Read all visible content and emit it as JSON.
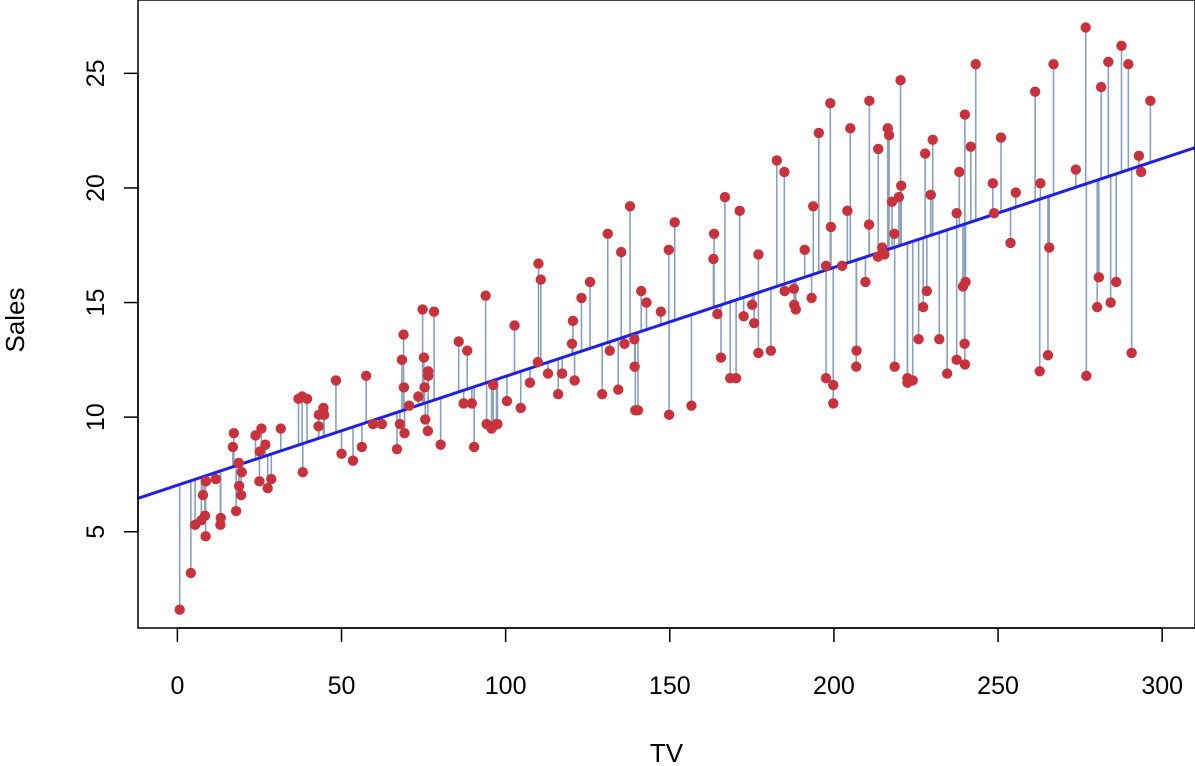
{
  "chart_data": {
    "type": "scatter",
    "title": "",
    "xlabel": "TV",
    "ylabel": "Sales",
    "xlim": [
      -12,
      310
    ],
    "ylim": [
      0.8,
      28.2
    ],
    "x_ticks": [
      0,
      50,
      100,
      150,
      200,
      250,
      300
    ],
    "y_ticks": [
      5,
      10,
      15,
      20,
      25
    ],
    "grid": false,
    "legend": "none",
    "colors": {
      "points": "#c8323c",
      "fit_line": "#1f1fe6",
      "residual_lines": "#8aa0bf"
    },
    "fit_line": {
      "intercept": 7.03,
      "slope": 0.0475
    },
    "points": [
      [
        0.7,
        1.6
      ],
      [
        4.1,
        3.2
      ],
      [
        5.4,
        5.3
      ],
      [
        7.3,
        5.5
      ],
      [
        8.4,
        5.7
      ],
      [
        8.6,
        4.8
      ],
      [
        7.8,
        6.6
      ],
      [
        8.7,
        7.2
      ],
      [
        11.7,
        7.3
      ],
      [
        13.1,
        5.3
      ],
      [
        13.2,
        5.6
      ],
      [
        16.9,
        8.7
      ],
      [
        17.2,
        9.3
      ],
      [
        17.9,
        5.9
      ],
      [
        18.7,
        8.0
      ],
      [
        18.8,
        7.0
      ],
      [
        19.4,
        6.6
      ],
      [
        19.6,
        7.6
      ],
      [
        23.8,
        9.2
      ],
      [
        25.0,
        7.2
      ],
      [
        25.1,
        8.5
      ],
      [
        25.6,
        9.5
      ],
      [
        26.8,
        8.8
      ],
      [
        27.5,
        6.9
      ],
      [
        28.6,
        7.3
      ],
      [
        31.5,
        9.5
      ],
      [
        36.9,
        10.8
      ],
      [
        38.0,
        10.9
      ],
      [
        38.2,
        7.6
      ],
      [
        39.5,
        10.8
      ],
      [
        43.0,
        9.6
      ],
      [
        43.1,
        10.1
      ],
      [
        44.5,
        10.4
      ],
      [
        44.7,
        10.1
      ],
      [
        48.3,
        11.6
      ],
      [
        50.0,
        8.4
      ],
      [
        53.5,
        8.1
      ],
      [
        56.2,
        8.7
      ],
      [
        57.5,
        11.8
      ],
      [
        59.6,
        9.7
      ],
      [
        62.3,
        9.7
      ],
      [
        66.9,
        8.6
      ],
      [
        67.8,
        9.7
      ],
      [
        68.4,
        12.5
      ],
      [
        68.9,
        13.6
      ],
      [
        69.0,
        11.3
      ],
      [
        69.2,
        9.3
      ],
      [
        70.6,
        10.5
      ],
      [
        73.4,
        10.9
      ],
      [
        74.7,
        14.7
      ],
      [
        75.1,
        12.6
      ],
      [
        75.3,
        11.3
      ],
      [
        75.5,
        9.9
      ],
      [
        76.3,
        9.4
      ],
      [
        76.4,
        12.0
      ],
      [
        76.4,
        11.8
      ],
      [
        78.2,
        14.6
      ],
      [
        80.2,
        8.8
      ],
      [
        85.7,
        13.3
      ],
      [
        87.2,
        10.6
      ],
      [
        88.3,
        12.9
      ],
      [
        89.7,
        10.6
      ],
      [
        90.4,
        8.7
      ],
      [
        93.9,
        15.3
      ],
      [
        94.2,
        9.7
      ],
      [
        95.7,
        9.5
      ],
      [
        96.2,
        11.4
      ],
      [
        96.2,
        9.6
      ],
      [
        97.2,
        9.7
      ],
      [
        97.5,
        9.7
      ],
      [
        100.4,
        10.7
      ],
      [
        102.7,
        14.0
      ],
      [
        104.6,
        10.4
      ],
      [
        107.4,
        11.5
      ],
      [
        109.8,
        12.4
      ],
      [
        110.7,
        16.0
      ],
      [
        110.0,
        16.7
      ],
      [
        112.9,
        11.9
      ],
      [
        116.0,
        11.0
      ],
      [
        117.2,
        11.9
      ],
      [
        120.2,
        13.2
      ],
      [
        120.5,
        14.2
      ],
      [
        121.0,
        11.6
      ],
      [
        123.1,
        15.2
      ],
      [
        125.7,
        15.9
      ],
      [
        129.4,
        11.0
      ],
      [
        131.1,
        18.0
      ],
      [
        131.7,
        12.9
      ],
      [
        134.3,
        11.2
      ],
      [
        135.2,
        17.2
      ],
      [
        136.2,
        13.2
      ],
      [
        137.9,
        19.2
      ],
      [
        139.2,
        13.4
      ],
      [
        139.3,
        12.2
      ],
      [
        139.5,
        10.3
      ],
      [
        140.3,
        10.3
      ],
      [
        141.3,
        15.5
      ],
      [
        142.9,
        15.0
      ],
      [
        147.3,
        14.6
      ],
      [
        149.7,
        17.3
      ],
      [
        149.8,
        10.1
      ],
      [
        151.5,
        18.5
      ],
      [
        156.6,
        10.5
      ],
      [
        163.3,
        16.9
      ],
      [
        163.5,
        18.0
      ],
      [
        164.5,
        14.5
      ],
      [
        165.6,
        12.6
      ],
      [
        166.8,
        19.6
      ],
      [
        168.4,
        11.7
      ],
      [
        170.2,
        11.7
      ],
      [
        171.3,
        19.0
      ],
      [
        172.5,
        14.4
      ],
      [
        175.1,
        14.9
      ],
      [
        175.7,
        14.1
      ],
      [
        177.0,
        12.8
      ],
      [
        177.0,
        17.1
      ],
      [
        180.8,
        12.9
      ],
      [
        182.6,
        21.2
      ],
      [
        184.9,
        20.7
      ],
      [
        185.0,
        15.5
      ],
      [
        187.8,
        15.6
      ],
      [
        188.4,
        14.7
      ],
      [
        187.9,
        14.9
      ],
      [
        191.1,
        17.3
      ],
      [
        193.2,
        15.2
      ],
      [
        193.7,
        19.2
      ],
      [
        195.4,
        22.4
      ],
      [
        197.6,
        11.7
      ],
      [
        197.6,
        16.6
      ],
      [
        198.9,
        23.7
      ],
      [
        199.1,
        18.3
      ],
      [
        199.8,
        11.4
      ],
      [
        199.8,
        10.6
      ],
      [
        202.5,
        16.6
      ],
      [
        204.1,
        19.0
      ],
      [
        205.0,
        22.6
      ],
      [
        206.8,
        12.2
      ],
      [
        206.9,
        12.9
      ],
      [
        209.6,
        15.9
      ],
      [
        210.7,
        18.4
      ],
      [
        210.8,
        23.8
      ],
      [
        213.4,
        17.0
      ],
      [
        213.5,
        21.7
      ],
      [
        214.7,
        17.4
      ],
      [
        215.4,
        17.1
      ],
      [
        216.4,
        22.6
      ],
      [
        216.8,
        22.3
      ],
      [
        217.7,
        19.4
      ],
      [
        218.4,
        18.0
      ],
      [
        218.5,
        12.2
      ],
      [
        219.8,
        19.6
      ],
      [
        220.3,
        24.7
      ],
      [
        220.5,
        20.1
      ],
      [
        222.4,
        11.7
      ],
      [
        222.4,
        11.5
      ],
      [
        224.0,
        11.6
      ],
      [
        225.8,
        13.4
      ],
      [
        227.2,
        14.8
      ],
      [
        227.8,
        21.5
      ],
      [
        228.3,
        15.5
      ],
      [
        229.5,
        19.7
      ],
      [
        230.1,
        22.1
      ],
      [
        232.1,
        13.4
      ],
      [
        234.5,
        11.9
      ],
      [
        237.4,
        12.5
      ],
      [
        237.4,
        18.9
      ],
      [
        238.2,
        20.7
      ],
      [
        239.3,
        15.7
      ],
      [
        239.8,
        13.2
      ],
      [
        239.9,
        23.2
      ],
      [
        240.1,
        15.9
      ],
      [
        239.9,
        12.3
      ],
      [
        241.7,
        21.8
      ],
      [
        243.2,
        25.4
      ],
      [
        248.4,
        20.2
      ],
      [
        248.8,
        18.9
      ],
      [
        250.9,
        22.2
      ],
      [
        253.8,
        17.6
      ],
      [
        255.4,
        19.8
      ],
      [
        261.3,
        24.2
      ],
      [
        262.7,
        12.0
      ],
      [
        262.9,
        20.2
      ],
      [
        265.2,
        12.7
      ],
      [
        265.6,
        17.4
      ],
      [
        266.9,
        25.4
      ],
      [
        273.7,
        20.8
      ],
      [
        276.7,
        27.0
      ],
      [
        276.9,
        11.8
      ],
      [
        280.2,
        14.8
      ],
      [
        280.7,
        16.1
      ],
      [
        281.4,
        24.4
      ],
      [
        283.6,
        25.5
      ],
      [
        284.3,
        15.0
      ],
      [
        286.0,
        15.9
      ],
      [
        287.6,
        26.2
      ],
      [
        289.7,
        25.4
      ],
      [
        290.7,
        12.8
      ],
      [
        292.9,
        21.4
      ],
      [
        293.6,
        20.7
      ],
      [
        296.4,
        23.8
      ]
    ]
  }
}
